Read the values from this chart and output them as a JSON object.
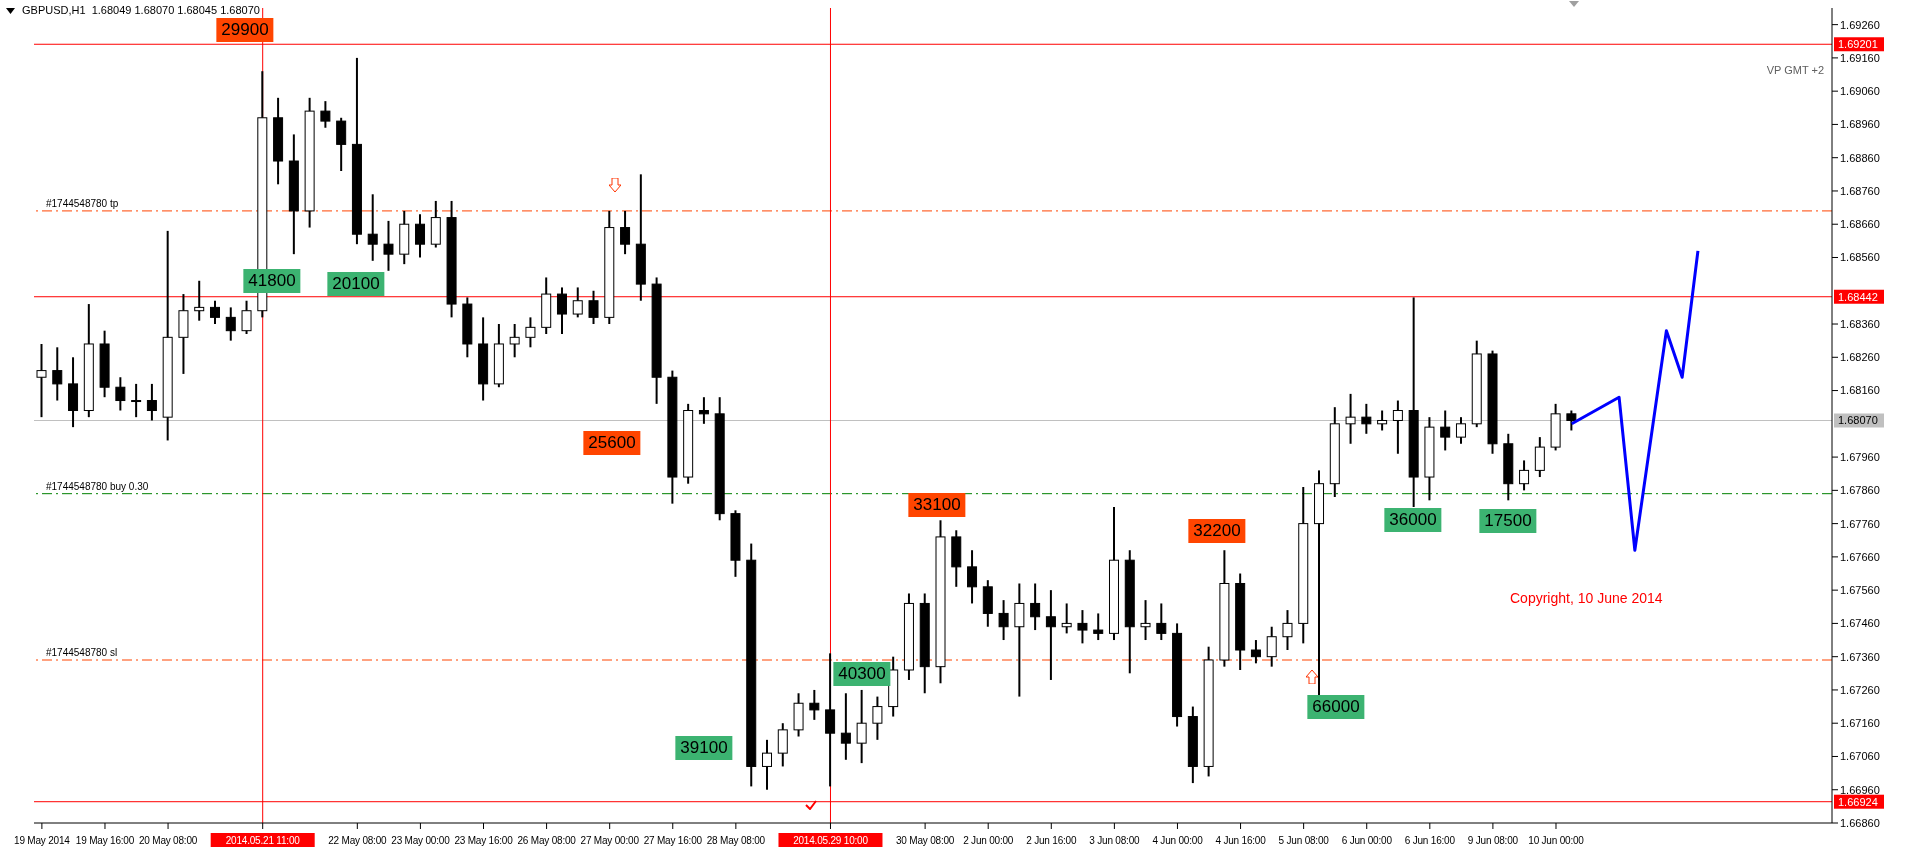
{
  "chart_data": {
    "type": "candlestick",
    "title": "GBPUSD,H1  1.68049 1.68070 1.68045 1.68070",
    "color": "#000000",
    "categories": [
      "19 May 2014",
      null,
      null,
      null,
      "19 May 16:00",
      null,
      null,
      null,
      "20 May 08:00",
      null,
      null,
      null,
      null,
      null,
      "2014.05.21 11:00",
      null,
      null,
      null,
      null,
      null,
      "22 May 08:00",
      null,
      null,
      null,
      "23 May 00:00",
      null,
      null,
      null,
      "23 May 16:00",
      null,
      null,
      null,
      "26 May 08:00",
      null,
      null,
      null,
      "27 May 00:00",
      null,
      null,
      null,
      "27 May 16:00",
      null,
      null,
      null,
      "28 May 08:00",
      null,
      null,
      null,
      null,
      null,
      "2014.05.29 10:00",
      null,
      null,
      null,
      null,
      null,
      "30 May 08:00",
      null,
      null,
      null,
      "2 Jun 00:00",
      null,
      null,
      null,
      "2 Jun 16:00",
      null,
      null,
      null,
      "3 Jun 08:00",
      null,
      null,
      null,
      "4 Jun 00:00",
      null,
      null,
      null,
      "4 Jun 16:00",
      null,
      null,
      null,
      "5 Jun 08:00",
      null,
      null,
      null,
      "6 Jun 00:00",
      null,
      null,
      null,
      "6 Jun 16:00",
      null,
      null,
      null,
      "9 Jun 08:00",
      null,
      null,
      null,
      "10 Jun 00:00",
      null,
      null,
      null,
      null,
      null,
      null,
      null,
      null,
      null,
      null,
      null,
      null,
      null,
      null,
      null,
      null,
      null
    ],
    "ohlc": [
      [
        1.682,
        1.683,
        1.6808,
        1.6822
      ],
      [
        1.6822,
        1.6829,
        1.6813,
        1.6818
      ],
      [
        1.6818,
        1.6826,
        1.6805,
        1.681
      ],
      [
        1.681,
        1.6842,
        1.6808,
        1.683
      ],
      [
        1.683,
        1.6834,
        1.6814,
        1.6817
      ],
      [
        1.6817,
        1.682,
        1.681,
        1.6813
      ],
      [
        1.6813,
        1.6818,
        1.6808,
        1.6813
      ],
      [
        1.6813,
        1.6818,
        1.6807,
        1.681
      ],
      [
        1.6808,
        1.6864,
        1.6801,
        1.6832
      ],
      [
        1.6832,
        1.6845,
        1.6821,
        1.684
      ],
      [
        1.684,
        1.6849,
        1.6837,
        1.6841
      ],
      [
        1.6841,
        1.6843,
        1.6836,
        1.6838
      ],
      [
        1.6838,
        1.6841,
        1.6831,
        1.6834
      ],
      [
        1.6834,
        1.6843,
        1.6833,
        1.684
      ],
      [
        1.684,
        1.6912,
        1.6838,
        1.6898
      ],
      [
        1.6898,
        1.6904,
        1.6878,
        1.6885
      ],
      [
        1.6885,
        1.6893,
        1.6857,
        1.687
      ],
      [
        1.687,
        1.6904,
        1.6865,
        1.69
      ],
      [
        1.69,
        1.6903,
        1.6895,
        1.6897
      ],
      [
        1.6897,
        1.6898,
        1.6882,
        1.689
      ],
      [
        1.689,
        1.6916,
        1.686,
        1.6863
      ],
      [
        1.6863,
        1.6875,
        1.6855,
        1.686
      ],
      [
        1.686,
        1.6867,
        1.6852,
        1.6857
      ],
      [
        1.6857,
        1.687,
        1.6854,
        1.6866
      ],
      [
        1.6866,
        1.6869,
        1.6856,
        1.686
      ],
      [
        1.686,
        1.6873,
        1.6859,
        1.6868
      ],
      [
        1.6868,
        1.6873,
        1.6838,
        1.6842
      ],
      [
        1.6842,
        1.6844,
        1.6826,
        1.683
      ],
      [
        1.683,
        1.6838,
        1.6813,
        1.6818
      ],
      [
        1.6818,
        1.6836,
        1.6817,
        1.683
      ],
      [
        1.683,
        1.6836,
        1.6826,
        1.6832
      ],
      [
        1.6832,
        1.6838,
        1.6829,
        1.6835
      ],
      [
        1.6835,
        1.685,
        1.6833,
        1.6845
      ],
      [
        1.6845,
        1.6847,
        1.6833,
        1.6839
      ],
      [
        1.6839,
        1.6847,
        1.6838,
        1.6843
      ],
      [
        1.6843,
        1.6846,
        1.6836,
        1.6838
      ],
      [
        1.6838,
        1.687,
        1.6836,
        1.6865
      ],
      [
        1.6865,
        1.687,
        1.6857,
        1.686
      ],
      [
        1.686,
        1.6881,
        1.6843,
        1.6848
      ],
      [
        1.6848,
        1.685,
        1.6812,
        1.682
      ],
      [
        1.682,
        1.6822,
        1.6782,
        1.679
      ],
      [
        1.679,
        1.6812,
        1.6788,
        1.681
      ],
      [
        1.681,
        1.6814,
        1.6806,
        1.6809
      ],
      [
        1.6809,
        1.6814,
        1.6777,
        1.6779
      ],
      [
        1.6779,
        1.678,
        1.676,
        1.6765
      ],
      [
        1.6765,
        1.677,
        1.6697,
        1.6703
      ],
      [
        1.6703,
        1.6711,
        1.6696,
        1.6707
      ],
      [
        1.6707,
        1.6716,
        1.6703,
        1.6714
      ],
      [
        1.6714,
        1.6725,
        1.6712,
        1.6722
      ],
      [
        1.6722,
        1.6726,
        1.6717,
        1.672
      ],
      [
        1.672,
        1.6737,
        1.6697,
        1.6713
      ],
      [
        1.6713,
        1.6725,
        1.6705,
        1.671
      ],
      [
        1.671,
        1.6726,
        1.6704,
        1.6716
      ],
      [
        1.6716,
        1.6724,
        1.6711,
        1.6721
      ],
      [
        1.6721,
        1.6736,
        1.6718,
        1.6732
      ],
      [
        1.6732,
        1.6755,
        1.6729,
        1.6752
      ],
      [
        1.6752,
        1.6755,
        1.6725,
        1.6733
      ],
      [
        1.6733,
        1.6777,
        1.6728,
        1.6772
      ],
      [
        1.6772,
        1.6774,
        1.6757,
        1.6763
      ],
      [
        1.6763,
        1.6768,
        1.6752,
        1.6757
      ],
      [
        1.6757,
        1.6759,
        1.6745,
        1.6749
      ],
      [
        1.6749,
        1.6753,
        1.6741,
        1.6745
      ],
      [
        1.6745,
        1.6758,
        1.6724,
        1.6752
      ],
      [
        1.6752,
        1.6758,
        1.6744,
        1.6748
      ],
      [
        1.6748,
        1.6756,
        1.6729,
        1.6745
      ],
      [
        1.6745,
        1.6752,
        1.6743,
        1.6746
      ],
      [
        1.6746,
        1.675,
        1.674,
        1.6744
      ],
      [
        1.6744,
        1.6749,
        1.6741,
        1.6743
      ],
      [
        1.6743,
        1.6781,
        1.6741,
        1.6765
      ],
      [
        1.6765,
        1.6768,
        1.6731,
        1.6745
      ],
      [
        1.6745,
        1.6753,
        1.6741,
        1.6746
      ],
      [
        1.6746,
        1.6752,
        1.6741,
        1.6743
      ],
      [
        1.6743,
        1.6746,
        1.6715,
        1.6718
      ],
      [
        1.6718,
        1.6721,
        1.6698,
        1.6703
      ],
      [
        1.6703,
        1.6739,
        1.67,
        1.6735
      ],
      [
        1.6735,
        1.6768,
        1.6733,
        1.6758
      ],
      [
        1.6758,
        1.6761,
        1.6732,
        1.6738
      ],
      [
        1.6738,
        1.6741,
        1.6734,
        1.6736
      ],
      [
        1.6736,
        1.6745,
        1.6733,
        1.6742
      ],
      [
        1.6742,
        1.675,
        1.6738,
        1.6746
      ],
      [
        1.6746,
        1.6787,
        1.674,
        1.6776
      ],
      [
        1.6776,
        1.6792,
        1.6724,
        1.6788
      ],
      [
        1.6788,
        1.6811,
        1.6784,
        1.6806
      ],
      [
        1.6806,
        1.6815,
        1.68,
        1.6808
      ],
      [
        1.6808,
        1.6812,
        1.6803,
        1.6806
      ],
      [
        1.6806,
        1.681,
        1.6804,
        1.6807
      ],
      [
        1.6807,
        1.6813,
        1.6797,
        1.681
      ],
      [
        1.681,
        1.6844,
        1.6781,
        1.679
      ],
      [
        1.679,
        1.6808,
        1.6783,
        1.6805
      ],
      [
        1.6805,
        1.681,
        1.6798,
        1.6802
      ],
      [
        1.6802,
        1.6808,
        1.68,
        1.6806
      ],
      [
        1.6806,
        1.6831,
        1.6805,
        1.6827
      ],
      [
        1.6827,
        1.6828,
        1.6797,
        1.68
      ],
      [
        1.68,
        1.6803,
        1.6783,
        1.6788
      ],
      [
        1.6788,
        1.6795,
        1.6786,
        1.6792
      ],
      [
        1.6792,
        1.6802,
        1.679,
        1.6799
      ],
      [
        1.6799,
        1.6812,
        1.6798,
        1.6809
      ],
      [
        1.6809,
        1.681,
        1.6804,
        1.6807
      ],
      null,
      null,
      null,
      null,
      null,
      null,
      null,
      null,
      null,
      null,
      null,
      null,
      null,
      null,
      null,
      null
    ],
    "series": [
      {
        "type": "line",
        "color": "#0000ff",
        "values": [
          null,
          null,
          null,
          null,
          null,
          null,
          null,
          null,
          null,
          null,
          null,
          null,
          null,
          null,
          null,
          null,
          null,
          null,
          null,
          null,
          null,
          null,
          null,
          null,
          null,
          null,
          null,
          null,
          null,
          null,
          null,
          null,
          null,
          null,
          null,
          null,
          null,
          null,
          null,
          null,
          null,
          null,
          null,
          null,
          null,
          null,
          null,
          null,
          null,
          null,
          null,
          null,
          null,
          null,
          null,
          null,
          null,
          null,
          null,
          null,
          null,
          null,
          null,
          null,
          null,
          null,
          null,
          null,
          null,
          null,
          null,
          null,
          null,
          null,
          null,
          null,
          null,
          null,
          null,
          null,
          null,
          null,
          null,
          null,
          null,
          null,
          null,
          null,
          null,
          null,
          null,
          null,
          null,
          null,
          null,
          null,
          null,
          1.6806,
          null,
          null,
          1.6814,
          1.6768,
          null,
          1.6834,
          1.682,
          1.6858,
          null,
          null,
          null,
          null,
          null,
          null,
          null,
          null
        ]
      }
    ],
    "ylim": [
      1.6686,
      1.6931
    ],
    "yticks": [
      {
        "value": 1.6686,
        "label": "1.66860"
      },
      {
        "value": 1.6696,
        "label": "1.66960"
      },
      {
        "value": 1.6706,
        "label": "1.67060"
      },
      {
        "value": 1.6716,
        "label": "1.67160"
      },
      {
        "value": 1.6726,
        "label": "1.67260"
      },
      {
        "value": 1.6736,
        "label": "1.67360"
      },
      {
        "value": 1.6746,
        "label": "1.67460"
      },
      {
        "value": 1.6756,
        "label": "1.67560"
      },
      {
        "value": 1.6766,
        "label": "1.67660"
      },
      {
        "value": 1.6776,
        "label": "1.67760"
      },
      {
        "value": 1.6786,
        "label": "1.67860"
      },
      {
        "value": 1.6796,
        "label": "1.67960"
      },
      {
        "value": 1.6816,
        "label": "1.68160"
      },
      {
        "value": 1.6826,
        "label": "1.68260"
      },
      {
        "value": 1.6836,
        "label": "1.68360"
      },
      {
        "value": 1.6856,
        "label": "1.68560"
      },
      {
        "value": 1.6866,
        "label": "1.68660"
      },
      {
        "value": 1.6876,
        "label": "1.68760"
      },
      {
        "value": 1.6886,
        "label": "1.68860"
      },
      {
        "value": 1.6896,
        "label": "1.68960"
      },
      {
        "value": 1.6906,
        "label": "1.69060"
      },
      {
        "value": 1.6916,
        "label": "1.69160"
      },
      {
        "value": 1.6926,
        "label": "1.69260"
      }
    ],
    "ref_lines": [
      {
        "axis": "y",
        "value": 1.69201,
        "label": "1.69201",
        "color": "#ff0000",
        "line_style": "solid"
      },
      {
        "axis": "y",
        "value": 1.68442,
        "label": "1.68442",
        "color": "#ff0000",
        "line_style": "solid"
      },
      {
        "axis": "y",
        "value": 1.66924,
        "label": "1.66924",
        "color": "#ff0000",
        "line_style": "solid"
      },
      {
        "axis": "y",
        "value": 1.6807,
        "label": "1.68070",
        "color": "#c0c0c0",
        "line_style": "solid"
      },
      {
        "axis": "y",
        "value": 1.687,
        "label": "#1744548780 tp",
        "color": "#ff4500",
        "line_style": "dashed"
      },
      {
        "axis": "y",
        "value": 1.6785,
        "label": "#1744548780 buy 0.30",
        "color": "#008000",
        "line_style": "dashed"
      },
      {
        "axis": "y",
        "value": 1.6735,
        "label": "#1744548780 sl",
        "color": "#ff4500",
        "line_style": "dashed"
      },
      {
        "axis": "x",
        "value": "2014.05.21 11:00",
        "color": "#ff0000",
        "line_style": "solid"
      },
      {
        "axis": "x",
        "value": "2014.05.29 10:00",
        "color": "#ff0000",
        "line_style": "solid"
      }
    ],
    "annotations": [
      "29900",
      "41800",
      "20100",
      "25600",
      "33100",
      "32200",
      "39100",
      "40300",
      "36000",
      "17500",
      "66000",
      "VP GMT +2",
      "Copyright, 10 June 2014"
    ]
  }
}
